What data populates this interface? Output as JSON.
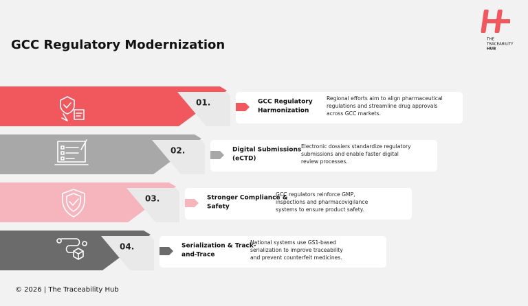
{
  "header": {
    "title": "GCC Regulatory Modernization",
    "logo_text": [
      "THE",
      "TRACEABILITY",
      "HUB"
    ]
  },
  "items": [
    {
      "number": "01.",
      "heading": [
        "GCC Regulatory",
        "Harmonization"
      ],
      "description": [
        "Regional efforts aim to align pharmaceutical",
        "regulations and streamline drug approvals",
        "across GCC markets."
      ]
    },
    {
      "number": "02.",
      "heading": [
        "Digital Submissions",
        "(eCTD)"
      ],
      "description": [
        "Electronic dossiers standardize regulatory",
        "submissions and enable faster digital",
        "review processes."
      ]
    },
    {
      "number": "03.",
      "heading": [
        "Stronger Compliance &",
        "Safety"
      ],
      "description": [
        "GCC regulators reinforce GMP,",
        "inspections and pharmacovigilance",
        "systems to ensure product safety."
      ]
    },
    {
      "number": "04.",
      "heading": [
        "Serialization & Track-",
        "and-Trace"
      ],
      "description": [
        "National systems use GS1-based",
        "serialization to improve traceability",
        "and prevent counterfeit medicines."
      ]
    }
  ],
  "footer": "© 2026 | The Traceability Hub"
}
